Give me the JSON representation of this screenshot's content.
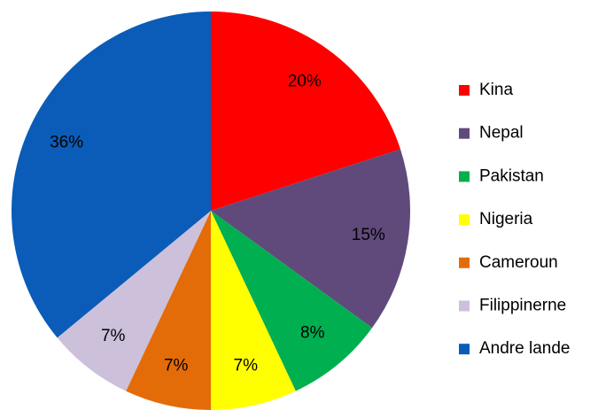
{
  "chart_data": {
    "type": "pie",
    "categories": [
      "Kina",
      "Nepal",
      "Pakistan",
      "Nigeria",
      "Cameroun",
      "Filippinerne",
      "Andre lande"
    ],
    "values": [
      20,
      15,
      8,
      7,
      7,
      7,
      36
    ],
    "value_labels": [
      "20%",
      "15%",
      "8%",
      "7%",
      "7%",
      "7%",
      "36%"
    ],
    "colors": [
      "#ff0000",
      "#604a7b",
      "#00b050",
      "#ffff00",
      "#e36c09",
      "#ccc0da",
      "#0a5cb8"
    ],
    "legend": "right"
  }
}
